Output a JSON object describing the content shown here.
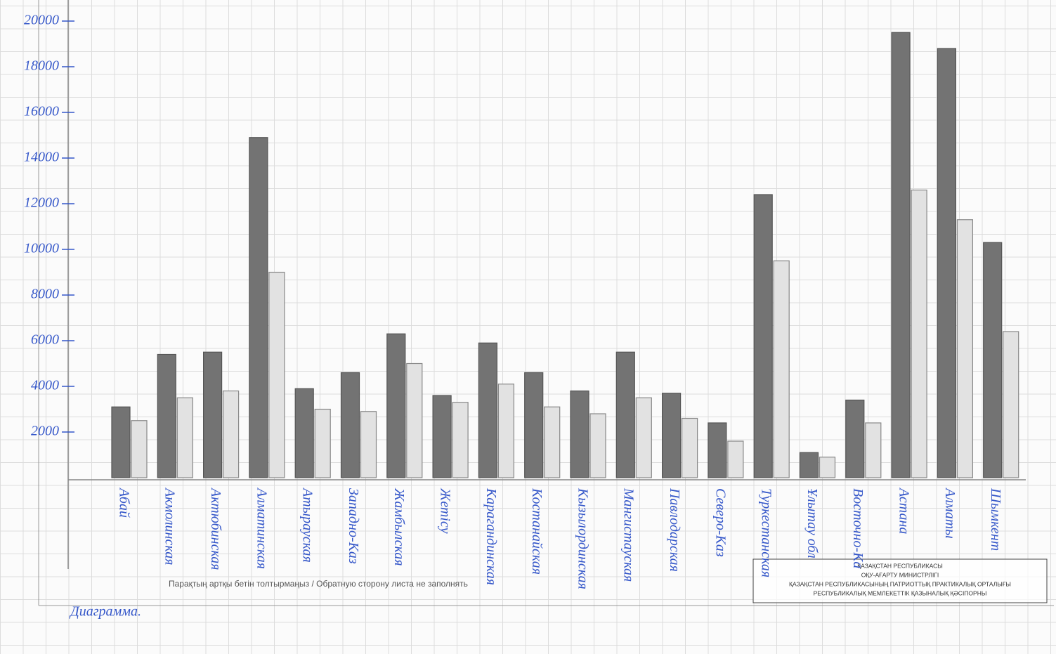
{
  "chart_data": {
    "type": "bar",
    "categories": [
      "Абай",
      "Акмолинская",
      "Актюбинская",
      "Алматинская",
      "Атырауская",
      "Западно-Каз",
      "Жамбылская",
      "Жетісу",
      "Карагандинская",
      "Костанайская",
      "Кызылординская",
      "Мангистауская",
      "Павлодарская",
      "Северо-Каз",
      "Туркестанская",
      "Ұлытау обл",
      "Восточно-Ка",
      "Астана",
      "Алматы",
      "Шымкент"
    ],
    "series": [
      {
        "color": "#737373",
        "values": [
          3100,
          5400,
          5500,
          14900,
          3900,
          4600,
          6300,
          3600,
          5900,
          4600,
          3800,
          5500,
          3700,
          2400,
          12400,
          1100,
          3400,
          19500,
          18800,
          10300
        ]
      },
      {
        "color": "#e2e2e2",
        "values": [
          2500,
          3500,
          3800,
          9000,
          3000,
          2900,
          5000,
          3300,
          4100,
          3100,
          2800,
          3500,
          2600,
          1600,
          9500,
          900,
          2400,
          12600,
          11300,
          6400
        ]
      }
    ],
    "ylim": [
      0,
      20000
    ],
    "yticks": [
      2000,
      4000,
      6000,
      8000,
      10000,
      12000,
      14000,
      16000,
      18000,
      20000
    ],
    "caption": "Диаграмма.",
    "note": "Парақтың артқы бетін толтырмаңыз / Обратную сторону листа не заполнять",
    "stamp": [
      "ҚАЗАҚСТАН РЕСПУБЛИКАСЫ",
      "ОҚУ-АҒАРТУ МИНИСТРЛІГІ",
      "ҚАЗАҚСТАН РЕСПУБЛИКАСЫНЫҢ ПАТРИОТТЫҚ ПРАКТИКАЛЫҚ ОРТАЛЫҒЫ",
      "РЕСПУБЛИКАЛЫҚ МЕМЛЕКЕТТІК ҚАЗЫНАЛЫҚ ҚӘСІПОРНЫ"
    ]
  }
}
